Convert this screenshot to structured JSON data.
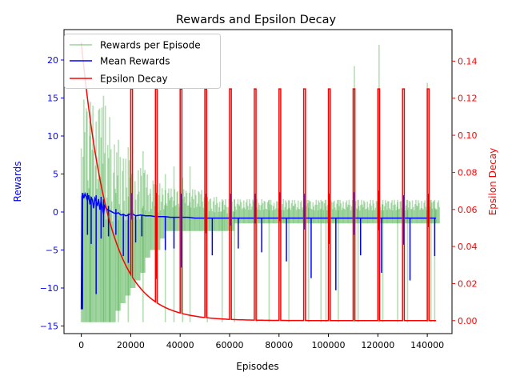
{
  "chart_data": {
    "type": "line",
    "title": "Rewards and Epsilon Decay",
    "xlabel": "Episodes",
    "ylabel": "Rewards",
    "ylabel_right": "Epsilon Decay",
    "xlim": [
      -7000,
      150000
    ],
    "ylim": [
      -16.0,
      24.0
    ],
    "ylim_right": [
      -0.007,
      0.157
    ],
    "x_ticks": [
      0,
      20000,
      40000,
      60000,
      80000,
      100000,
      120000,
      140000
    ],
    "y_ticks": [
      -15,
      -10,
      -5,
      0,
      5,
      10,
      15,
      20
    ],
    "y_ticks_right": [
      0.0,
      0.02,
      0.04,
      0.06,
      0.08,
      0.1,
      0.12,
      0.14
    ],
    "legend_position": "top-left",
    "colors": {
      "rewards": "#2ca02c",
      "mean": "#0000ff",
      "epsilon": "#ff0000",
      "left_axis_text": "#0000ff",
      "right_axis_text": "#ff0000"
    },
    "series": [
      {
        "name": "Rewards per Episode",
        "axis": "left",
        "style": "band",
        "opacity": 0.35,
        "band": [
          [
            0,
            -14.5,
            15
          ],
          [
            2000,
            -14.5,
            15.2
          ],
          [
            4000,
            -14.5,
            14
          ],
          [
            6000,
            -14.5,
            15.3
          ],
          [
            8000,
            -14.5,
            14
          ],
          [
            10000,
            -14.5,
            9.5
          ],
          [
            12000,
            -14.5,
            9
          ],
          [
            14000,
            -13,
            8
          ],
          [
            16000,
            -12,
            7.5
          ],
          [
            18000,
            -11,
            7
          ],
          [
            20000,
            -10,
            6
          ],
          [
            22000,
            -9,
            5.5
          ],
          [
            24000,
            -8,
            6.2
          ],
          [
            26000,
            -6,
            5
          ],
          [
            28000,
            -5,
            4.5
          ],
          [
            30000,
            -5,
            3.8
          ],
          [
            32000,
            -3.5,
            3.2
          ],
          [
            34000,
            -2.5,
            3.2
          ],
          [
            36000,
            -2.5,
            3.1
          ],
          [
            38000,
            -2.5,
            3
          ],
          [
            40000,
            -2.5,
            3
          ],
          [
            42000,
            -2.5,
            3
          ],
          [
            44000,
            -2.5,
            3
          ],
          [
            46000,
            -2.5,
            3
          ],
          [
            48000,
            -2.5,
            3
          ],
          [
            50000,
            -2.5,
            2
          ],
          [
            52000,
            -2.5,
            2
          ],
          [
            54000,
            -2.5,
            2
          ],
          [
            56000,
            -2.5,
            1.7
          ],
          [
            58000,
            -2.5,
            1.7
          ],
          [
            60000,
            -2.5,
            1.7
          ],
          [
            62000,
            -1.5,
            1.7
          ],
          [
            64000,
            -1.5,
            1.7
          ],
          [
            66000,
            -1.5,
            1.7
          ],
          [
            68000,
            -1.5,
            1.7
          ],
          [
            70000,
            -1.5,
            1.7
          ],
          [
            72000,
            -1.5,
            1.7
          ],
          [
            74000,
            -1.5,
            1.6
          ],
          [
            76000,
            -1.5,
            1.6
          ],
          [
            78000,
            -1.5,
            1.6
          ],
          [
            80000,
            -1.5,
            1.7
          ],
          [
            82000,
            -1.5,
            1.6
          ],
          [
            84000,
            -1.5,
            1.6
          ],
          [
            86000,
            -1.5,
            1.6
          ],
          [
            88000,
            -1.5,
            1.6
          ],
          [
            90000,
            -1.5,
            1.6
          ],
          [
            92000,
            -1.5,
            1.6
          ],
          [
            94000,
            -1.5,
            1.6
          ],
          [
            96000,
            -1.5,
            1.6
          ],
          [
            98000,
            -1.5,
            1.6
          ],
          [
            100000,
            -1.5,
            1.6
          ],
          [
            102000,
            -1.5,
            1.6
          ],
          [
            104000,
            -1.5,
            1.6
          ],
          [
            106000,
            -1.5,
            1.6
          ],
          [
            108000,
            -1.5,
            1.6
          ],
          [
            110000,
            -1.5,
            1.6
          ],
          [
            112000,
            -1.5,
            1.6
          ],
          [
            114000,
            -1.5,
            1.6
          ],
          [
            116000,
            -1.5,
            1.6
          ],
          [
            118000,
            -1.5,
            1.6
          ],
          [
            120000,
            -1.5,
            1.6
          ],
          [
            122000,
            -1.5,
            1.6
          ],
          [
            124000,
            -1.5,
            1.6
          ],
          [
            126000,
            -1.5,
            1.6
          ],
          [
            128000,
            -1.5,
            1.6
          ],
          [
            130000,
            -1.5,
            1.6
          ],
          [
            132000,
            -1.5,
            1.6
          ],
          [
            134000,
            -1.5,
            1.6
          ],
          [
            136000,
            -1.5,
            1.6
          ],
          [
            138000,
            -1.5,
            1.6
          ],
          [
            140000,
            -1.5,
            1.6
          ],
          [
            142000,
            -1.5,
            1.6
          ],
          [
            143500,
            -1.5,
            1.6
          ]
        ],
        "spikes": [
          [
            3500,
            -14.5,
            10
          ],
          [
            9000,
            -14.5,
            15.3
          ],
          [
            11500,
            -14.5,
            12.5
          ],
          [
            15000,
            -14.5,
            9.5
          ],
          [
            19000,
            -14.5,
            8.5
          ],
          [
            25000,
            -14.5,
            8
          ],
          [
            34000,
            -14.5,
            5
          ],
          [
            37500,
            -14.5,
            6
          ],
          [
            41000,
            -14.5,
            4.5
          ],
          [
            44000,
            -14.5,
            6
          ],
          [
            51000,
            -14.5,
            2
          ],
          [
            57000,
            -14.5,
            1.7
          ],
          [
            62000,
            -14.5,
            1.7
          ],
          [
            71000,
            -14.5,
            1.7
          ],
          [
            76000,
            -14.5,
            1.6
          ],
          [
            84000,
            -14.5,
            1.6
          ],
          [
            92000,
            -14.5,
            1.6
          ],
          [
            97000,
            -14.5,
            1.6
          ],
          [
            99000,
            -14.5,
            1.6
          ],
          [
            104000,
            -14.5,
            1.6
          ],
          [
            110500,
            -14.5,
            19.2
          ],
          [
            112000,
            -14.5,
            1.6
          ],
          [
            120500,
            -14.5,
            22
          ],
          [
            122000,
            -14.5,
            1.6
          ],
          [
            128000,
            -14.5,
            1.6
          ],
          [
            132000,
            -14.5,
            1.6
          ],
          [
            140000,
            -14.5,
            17
          ],
          [
            141500,
            -14.5,
            1.6
          ],
          [
            143000,
            -14.5,
            1.6
          ]
        ]
      },
      {
        "name": "Mean Rewards",
        "axis": "left",
        "style": "line",
        "x": [
          0,
          300,
          600,
          1000,
          1500,
          2000,
          2500,
          3000,
          3500,
          4000,
          4500,
          5000,
          5500,
          6000,
          6500,
          7000,
          7500,
          8000,
          8500,
          9000,
          9500,
          10000,
          11000,
          12000,
          13000,
          14000,
          15000,
          16000,
          17000,
          18000,
          19000,
          20000,
          21000,
          22000,
          24000,
          26000,
          28000,
          30000,
          32000,
          34000,
          36000,
          38000,
          40000,
          43000,
          46000,
          50000,
          55000,
          60000,
          70000,
          80000,
          90000,
          100000,
          110000,
          120000,
          130000,
          140000,
          143500
        ],
        "values": [
          -12.8,
          2.0,
          2.5,
          1.8,
          2.4,
          2.0,
          1.5,
          2.2,
          1.0,
          1.9,
          1.6,
          0.5,
          1.8,
          1.4,
          0.8,
          1.7,
          0.3,
          1.5,
          0.6,
          -0.3,
          1.0,
          0.5,
          0.2,
          0.1,
          -0.1,
          -0.2,
          -0.1,
          -0.4,
          -0.3,
          -0.5,
          -0.4,
          -0.2,
          -0.3,
          -0.5,
          -0.4,
          -0.5,
          -0.5,
          -0.6,
          -0.6,
          -0.6,
          -0.7,
          -0.7,
          -0.7,
          -0.7,
          -0.8,
          -0.8,
          -0.8,
          -0.8,
          -0.8,
          -0.8,
          -0.8,
          -0.8,
          -0.8,
          -0.8,
          -0.8,
          -0.8,
          -0.8
        ],
        "spikes": [
          [
            500,
            -12.8,
            2.5
          ],
          [
            2500,
            -3.0,
            2.5
          ],
          [
            4000,
            -4.2,
            2.0
          ],
          [
            6000,
            -10.8,
            2.2
          ],
          [
            8000,
            -3.5,
            2.0
          ],
          [
            9000,
            -2.0,
            1.7
          ],
          [
            11000,
            -3.2,
            0.8
          ],
          [
            14000,
            -3.0,
            0.4
          ],
          [
            17000,
            -5.8,
            -0.3
          ],
          [
            19000,
            -6.7,
            -0.2
          ],
          [
            20500,
            -1.0,
            2.5
          ],
          [
            22000,
            -4.0,
            -0.4
          ],
          [
            24500,
            -3.2,
            -0.4
          ],
          [
            30500,
            -8.8,
            2.5
          ],
          [
            34000,
            -5.0,
            -0.6
          ],
          [
            37500,
            -4.8,
            -0.7
          ],
          [
            40500,
            -7.3,
            2.4
          ],
          [
            50500,
            -2.8,
            2.4
          ],
          [
            53000,
            -5.7,
            -0.8
          ],
          [
            60500,
            -1.8,
            2.4
          ],
          [
            63500,
            -4.8,
            -0.8
          ],
          [
            70500,
            -1.5,
            2.4
          ],
          [
            73000,
            -5.3,
            -0.8
          ],
          [
            80500,
            -1.2,
            2.6
          ],
          [
            83000,
            -6.5,
            -0.8
          ],
          [
            90500,
            -2.3,
            2.4
          ],
          [
            93000,
            -8.7,
            -0.8
          ],
          [
            100500,
            -4.2,
            2.4
          ],
          [
            103000,
            -10.3,
            -0.8
          ],
          [
            110500,
            -3.0,
            2.6
          ],
          [
            113000,
            -5.7,
            -0.8
          ],
          [
            120500,
            -2.4,
            2.8
          ],
          [
            121500,
            -8.0,
            -0.8
          ],
          [
            130500,
            -4.3,
            2.2
          ],
          [
            133000,
            -9.0,
            -0.8
          ],
          [
            140500,
            -2.0,
            2.4
          ],
          [
            143000,
            -5.8,
            -0.8
          ]
        ]
      },
      {
        "name": "Epsilon Decay",
        "axis": "right",
        "style": "line",
        "start": 0.15,
        "floor": 0.0,
        "decay_per_episode": 8.98e-05,
        "pulse_value": 0.125,
        "pulse_period": 10000,
        "pulse_start": 20000,
        "pulse_count": 13,
        "pulse_width": 700,
        "x_end": 143500
      }
    ],
    "legend": [
      {
        "name": "Rewards per Episode",
        "color": "#2ca02c",
        "opacity": 0.35
      },
      {
        "name": "Mean Rewards",
        "color": "#0000ff",
        "opacity": 1
      },
      {
        "name": "Epsilon Decay",
        "color": "#ff0000",
        "opacity": 1
      }
    ]
  }
}
